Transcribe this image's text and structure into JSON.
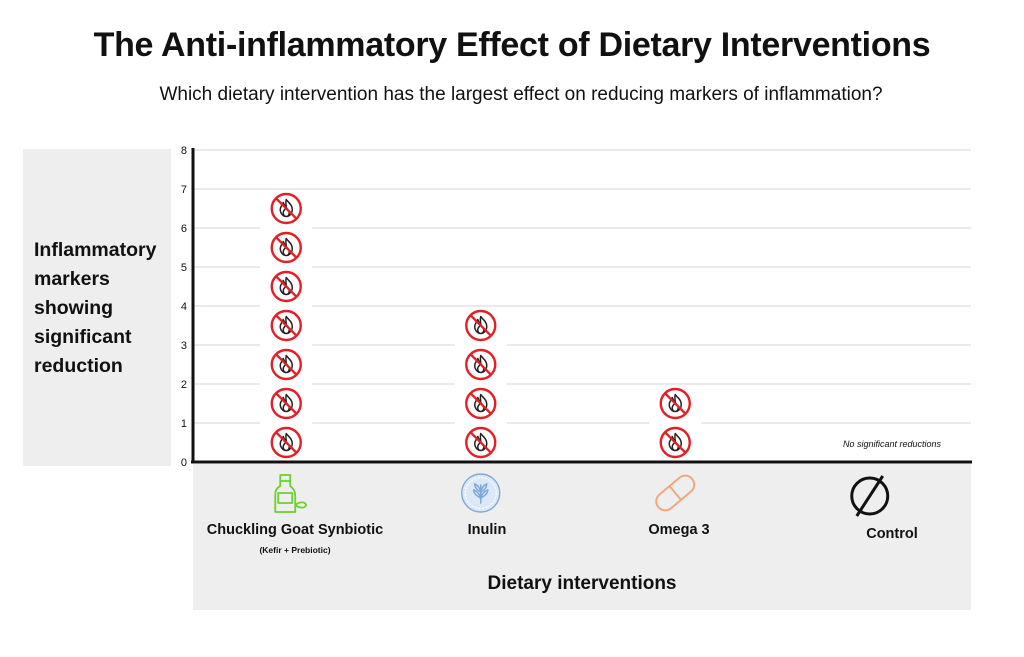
{
  "title": "The Anti-inflammatory Effect of Dietary Interventions",
  "subtitle": "Which dietary intervention has the largest effect on reducing markers of inflammation?",
  "chart_data": {
    "type": "bar",
    "title": "The Anti-inflammatory Effect of Dietary Interventions",
    "subtitle": "Which dietary intervention has the largest effect on reducing markers of inflammation?",
    "ylabel": "Inflammatory markers showing significant reduction",
    "xlabel": "Dietary interventions",
    "ylim": [
      0,
      8
    ],
    "yticks": [
      0,
      1,
      2,
      3,
      4,
      5,
      6,
      7,
      8
    ],
    "grid": true,
    "categories": [
      "Chuckling Goat Synbiotic",
      "Inulin",
      "Omega 3",
      "Control"
    ],
    "category_sublabels": [
      "(Kefir + Prebiotic)",
      "",
      "",
      ""
    ],
    "values": [
      7,
      4,
      2,
      0
    ],
    "annotations": [
      "",
      "",
      "",
      "No significant reductions"
    ],
    "marker_icon": "no-inflammation-icon",
    "category_icons": [
      "bottle-icon",
      "wheat-icon",
      "capsule-icon",
      "no-symbol-icon"
    ],
    "colors": {
      "marker_ring": "#e41f26",
      "marker_flame": "#222222",
      "bottle": "#6bd12a",
      "wheat": "#7fa8d9",
      "capsule": "#f2a77c",
      "control": "#111111",
      "panel": "#eeeeee",
      "grid": "#d9dde2",
      "axis": "#111111"
    }
  }
}
